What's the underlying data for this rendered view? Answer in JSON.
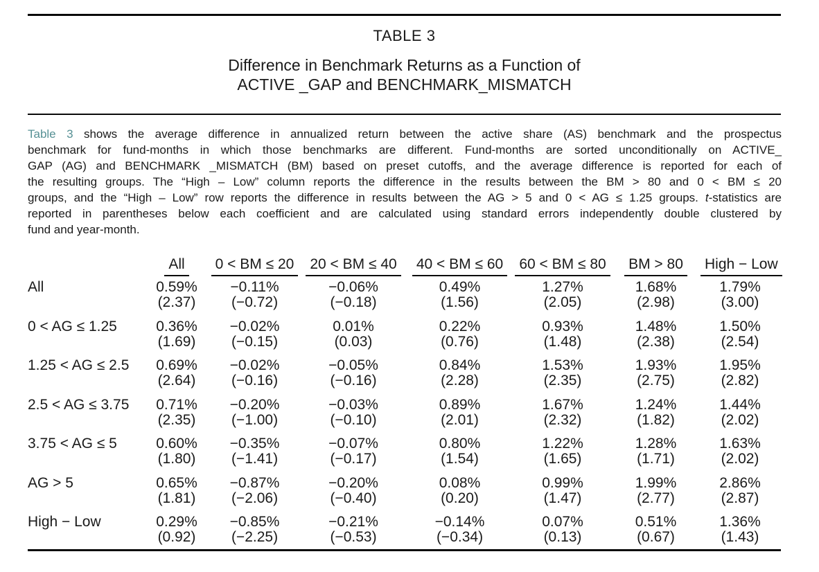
{
  "page": {
    "title": "TABLE 3",
    "subtitle_line1": "Difference in Benchmark Returns as a Function of",
    "subtitle_line2": "ACTIVE _GAP and BENCHMARK_MISMATCH"
  },
  "colors": {
    "reference_link": "#569094",
    "text": "#1a1a1a",
    "rule": "#0a0a0a"
  },
  "caption": {
    "lines": [
      [
        {
          "t": "Table 3",
          "c": "ref"
        },
        {
          "t": " shows the average difference in annualized return between the active share (AS) benchmark and the prospectus"
        }
      ],
      [
        {
          "t": "benchmark for fund-months in which those benchmarks are different. Fund-months are sorted unconditionally on ACTIVE_"
        }
      ],
      [
        {
          "t": "GAP (AG) and BENCHMARK _MISMATCH (BM) based on preset cutoffs, and the average difference is reported for each of"
        }
      ],
      [
        {
          "t": "the resulting groups. The “High – Low” column reports the difference in the results between the BM > 80 and 0 < BM ≤ 20"
        }
      ],
      [
        {
          "t": "groups, and the “High – Low” row reports the difference in results between the AG > 5 and 0 < AG ≤ 1.25 groups. "
        },
        {
          "t": "t",
          "c": "i"
        },
        {
          "t": "-statistics are"
        }
      ],
      [
        {
          "t": "reported in parentheses below each coefficient and are calculated using standard errors independently double clustered by"
        }
      ],
      [
        {
          "t": "fund and year-month."
        }
      ]
    ]
  },
  "chart_data": {
    "type": "table",
    "title": "Difference in Benchmark Returns as a Function of ACTIVE_GAP and BENCHMARK_MISMATCH",
    "row_dimension": "ACTIVE_GAP (AG) groups",
    "column_dimension": "BENCHMARK_MISMATCH (BM) groups",
    "value_unit": "annualized return difference (%), t-statistics in parentheses"
  },
  "table": {
    "columns": [
      "All",
      "0 < BM ≤ 20",
      "20 < BM ≤ 40",
      "40 < BM ≤ 60",
      "60 < BM ≤ 80",
      "BM > 80",
      "High − Low"
    ],
    "rows": [
      {
        "label": "All",
        "values": [
          "0.59%",
          "−0.11%",
          "−0.06%",
          "0.49%",
          "1.27%",
          "1.68%",
          "1.79%"
        ],
        "tstats": [
          "(2.37)",
          "(−0.72)",
          "(−0.18)",
          "(1.56)",
          "(2.05)",
          "(2.98)",
          "(3.00)"
        ]
      },
      {
        "label": "0 < AG ≤ 1.25",
        "values": [
          "0.36%",
          "−0.02%",
          "0.01%",
          "0.22%",
          "0.93%",
          "1.48%",
          "1.50%"
        ],
        "tstats": [
          "(1.69)",
          "(−0.15)",
          "(0.03)",
          "(0.76)",
          "(1.48)",
          "(2.38)",
          "(2.54)"
        ]
      },
      {
        "label": "1.25 < AG ≤ 2.5",
        "values": [
          "0.69%",
          "−0.02%",
          "−0.05%",
          "0.84%",
          "1.53%",
          "1.93%",
          "1.95%"
        ],
        "tstats": [
          "(2.64)",
          "(−0.16)",
          "(−0.16)",
          "(2.28)",
          "(2.35)",
          "(2.75)",
          "(2.82)"
        ]
      },
      {
        "label": "2.5 < AG ≤ 3.75",
        "values": [
          "0.71%",
          "−0.20%",
          "−0.03%",
          "0.89%",
          "1.67%",
          "1.24%",
          "1.44%"
        ],
        "tstats": [
          "(2.35)",
          "(−1.00)",
          "(−0.10)",
          "(2.01)",
          "(2.32)",
          "(1.82)",
          "(2.02)"
        ]
      },
      {
        "label": "3.75 < AG ≤ 5",
        "values": [
          "0.60%",
          "−0.35%",
          "−0.07%",
          "0.80%",
          "1.22%",
          "1.28%",
          "1.63%"
        ],
        "tstats": [
          "(1.80)",
          "(−1.41)",
          "(−0.17)",
          "(1.54)",
          "(1.65)",
          "(1.71)",
          "(2.02)"
        ]
      },
      {
        "label": "AG > 5",
        "values": [
          "0.65%",
          "−0.87%",
          "−0.20%",
          "0.08%",
          "0.99%",
          "1.99%",
          "2.86%"
        ],
        "tstats": [
          "(1.81)",
          "(−2.06)",
          "(−0.40)",
          "(0.20)",
          "(1.47)",
          "(2.77)",
          "(2.87)"
        ]
      },
      {
        "label": "High − Low",
        "values": [
          "0.29%",
          "−0.85%",
          "−0.21%",
          "−0.14%",
          "0.07%",
          "0.51%",
          "1.36%"
        ],
        "tstats": [
          "(0.92)",
          "(−2.25)",
          "(−0.53)",
          "(−0.34)",
          "(0.13)",
          "(0.67)",
          "(1.43)"
        ]
      }
    ]
  }
}
